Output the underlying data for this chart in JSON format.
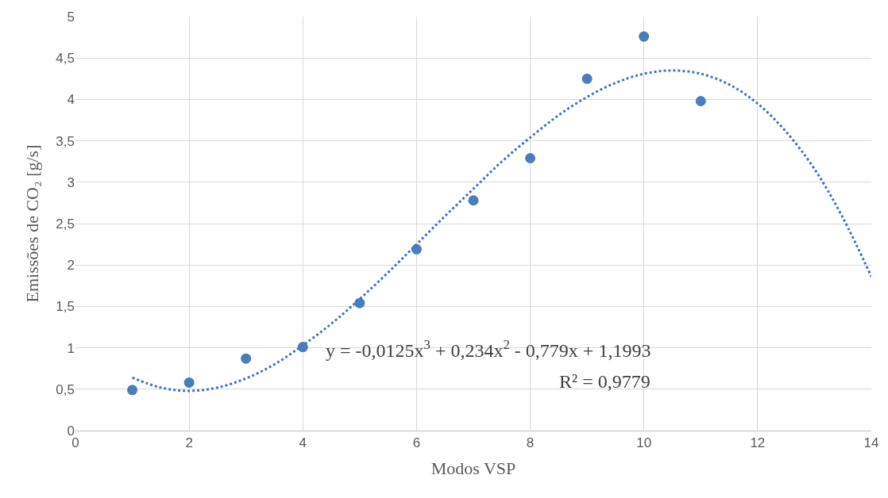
{
  "chart_data": {
    "type": "scatter",
    "xlabel": "Modos VSP",
    "ylabel": "Emissões de CO₂ [g/s]",
    "x": [
      1,
      2,
      3,
      4,
      5,
      6,
      7,
      8,
      9,
      10,
      11
    ],
    "series": [
      {
        "color": "#4a7ebb",
        "marker": "circle",
        "values": [
          0.49,
          0.58,
          0.87,
          1.01,
          1.54,
          2.19,
          2.78,
          3.29,
          4.25,
          4.76,
          3.98
        ]
      },
      {
        "type": "line",
        "color": "#4472c4",
        "marker": "none",
        "line_style": "dotted",
        "x": [
          1,
          1.5,
          2,
          2.5,
          3,
          3.5,
          4,
          4.5,
          5,
          5.5,
          6,
          6.5,
          7,
          7.5,
          8,
          8.5,
          9,
          9.5,
          10,
          10.5,
          11,
          11.5,
          12,
          12.5,
          13,
          13.5,
          14
        ],
        "values": [
          0.64,
          0.52,
          0.48,
          0.52,
          0.63,
          0.8,
          1.03,
          1.29,
          1.59,
          1.91,
          2.25,
          2.59,
          2.92,
          3.25,
          3.54,
          3.81,
          4.03,
          4.2,
          4.31,
          4.35,
          4.31,
          4.18,
          3.95,
          3.61,
          3.16,
          2.57,
          1.86
        ]
      }
    ],
    "xlim": [
      0,
      14
    ],
    "xticks": [
      0,
      2,
      4,
      6,
      8,
      10,
      12,
      14
    ],
    "ylim": [
      0,
      5
    ],
    "yticks": [
      0,
      {
        "value": 0.5,
        "label": "0,5"
      },
      1,
      {
        "value": 1.5,
        "label": "1,5"
      },
      2,
      {
        "value": 2.5,
        "label": "2,5"
      },
      3,
      {
        "value": 3.5,
        "label": "3,5"
      },
      4,
      {
        "value": 4.5,
        "label": "4,5"
      },
      5
    ],
    "grid": true,
    "annotations": [
      "y = -0,0125x$^{3}$ + 0,234x$^{2}$ - 0,779x + 1,1993",
      "R² = 0,9779"
    ]
  }
}
